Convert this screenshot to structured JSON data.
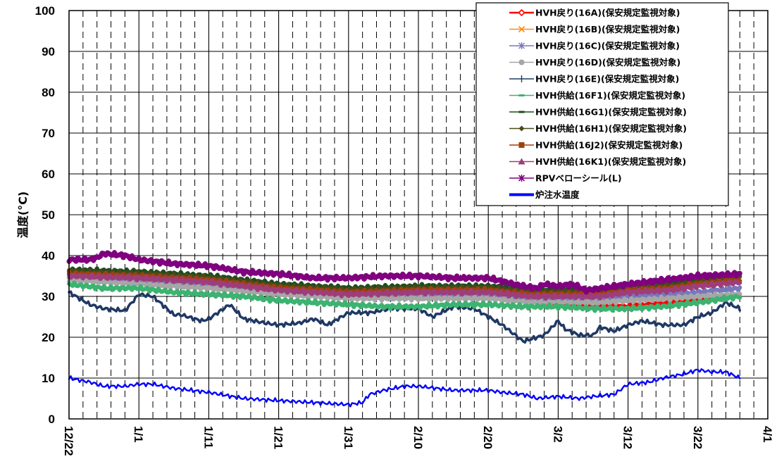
{
  "chart_data": {
    "type": "line",
    "title": "",
    "xlabel": "",
    "ylabel": "温度(°C)",
    "ylim": [
      0,
      100
    ],
    "yticks": [
      0,
      10,
      20,
      30,
      40,
      50,
      60,
      70,
      80,
      90,
      100
    ],
    "x_start": "12/22",
    "x_end": "4/1",
    "xtick_labels": [
      "12/22",
      "1/1",
      "1/11",
      "1/21",
      "1/31",
      "2/10",
      "2/20",
      "3/2",
      "3/12",
      "3/22",
      "4/1"
    ],
    "x_day_range": [
      0,
      100
    ],
    "grid": true,
    "legend_position": "top-right",
    "series": [
      {
        "name": "HVH戻り(16A)(保安規定監視対象)",
        "color": "#ff0000",
        "marker": "diamond-open",
        "x": [
          0,
          10,
          20,
          30,
          40,
          50,
          60,
          70,
          76,
          80,
          86,
          90,
          96
        ],
        "values": [
          35.5,
          34.5,
          33,
          31.5,
          30.5,
          30,
          30,
          28.5,
          27.5,
          27.5,
          28.5,
          29,
          30.5
        ]
      },
      {
        "name": "HVH戻り(16B)(保安規定監視対象)",
        "color": "#ff8c1a",
        "marker": "x",
        "x": [
          0,
          10,
          20,
          30,
          40,
          50,
          60,
          66,
          70,
          76,
          80,
          86,
          90,
          96
        ],
        "values": [
          36,
          35,
          34,
          32.5,
          31.5,
          31.5,
          31.5,
          30,
          30,
          30,
          31,
          32,
          33,
          34
        ]
      },
      {
        "name": "HVH戻り(16C)(保安規定監視対象)",
        "color": "#7777bb",
        "marker": "star",
        "x": [
          0,
          10,
          20,
          30,
          40,
          50,
          60,
          66,
          70,
          76,
          80,
          86,
          90,
          96
        ],
        "values": [
          34.5,
          33.5,
          32.5,
          31,
          30,
          30,
          30,
          29,
          29,
          29,
          30,
          30.5,
          31,
          32
        ]
      },
      {
        "name": "HVH戻り(16D)(保安規定監視対象)",
        "color": "#a6a6a6",
        "marker": "circle",
        "x": [
          0,
          10,
          20,
          30,
          40,
          50,
          60,
          66,
          70,
          76,
          80,
          86,
          90,
          96
        ],
        "values": [
          34,
          33,
          32,
          30.5,
          29.5,
          29.5,
          29.5,
          28.5,
          28.5,
          28.5,
          29,
          29.5,
          30,
          30.5
        ]
      },
      {
        "name": "HVH戻り(16E)(保安規定監視対象)",
        "color": "#1f3864",
        "marker": "plus",
        "x": [
          0,
          3,
          5,
          8,
          10,
          12,
          13,
          15,
          16,
          19,
          20,
          23,
          25,
          28,
          30,
          33,
          35,
          37,
          40,
          43,
          46,
          50,
          52,
          55,
          58,
          62,
          65,
          68,
          70,
          71,
          73,
          75,
          76,
          78,
          80,
          82,
          85,
          88,
          90,
          92,
          94,
          96
        ],
        "values": [
          31,
          28,
          27,
          26.5,
          30.5,
          30,
          28.5,
          25.5,
          25.5,
          24,
          24.5,
          28,
          24.5,
          23.5,
          23,
          23.5,
          24.5,
          23,
          26,
          26,
          27,
          27,
          25,
          27.5,
          27,
          23,
          19,
          20.5,
          24,
          22,
          20.5,
          20.5,
          22.5,
          21.5,
          23,
          24,
          23,
          23,
          25,
          26,
          28.5,
          27
        ]
      },
      {
        "name": "HVH供給(16F1)(保安規定監視対象)",
        "color": "#3cb371",
        "marker": "dash",
        "x": [
          0,
          5,
          10,
          15,
          20,
          25,
          30,
          35,
          40,
          45,
          50,
          55,
          60,
          65,
          70,
          75,
          80,
          85,
          90,
          96
        ],
        "values": [
          33,
          32,
          32,
          31,
          30.5,
          30,
          29,
          28.5,
          28,
          27.5,
          27.5,
          28,
          28,
          27.5,
          27.5,
          27,
          27,
          27.5,
          28.5,
          30
        ]
      },
      {
        "name": "HVH供給(16G1)(保安規定監視対象)",
        "color": "#1e4d1e",
        "marker": "dash",
        "x": [
          0,
          10,
          20,
          30,
          40,
          50,
          60,
          66,
          70,
          76,
          80,
          86,
          90,
          96
        ],
        "values": [
          36.5,
          36,
          35,
          33,
          32,
          32.5,
          32.5,
          31.5,
          31.5,
          31.5,
          32.5,
          33,
          34,
          35
        ]
      },
      {
        "name": "HVH供給(16H1)(保安規定監視対象)",
        "color": "#4a4a1a",
        "marker": "diamond",
        "x": [
          0,
          10,
          20,
          30,
          40,
          50,
          60,
          66,
          70,
          76,
          80,
          86,
          90,
          96
        ],
        "values": [
          36,
          35.5,
          34.5,
          32.5,
          31.5,
          32,
          32,
          31,
          31,
          31,
          32,
          32.5,
          33.5,
          34.5
        ]
      },
      {
        "name": "HVH供給(16J2)(保安規定監視対象)",
        "color": "#a0410d",
        "marker": "square",
        "x": [
          0,
          10,
          20,
          30,
          40,
          50,
          60,
          66,
          70,
          76,
          80,
          86,
          90,
          96
        ],
        "values": [
          35.5,
          35,
          34,
          32,
          31,
          31.5,
          31.5,
          30.5,
          30.5,
          30.5,
          31.5,
          32,
          33,
          34
        ]
      },
      {
        "name": "HVH供給(16K1)(保安規定監視対象)",
        "color": "#9e3d7a",
        "marker": "triangle",
        "x": [
          0,
          10,
          20,
          30,
          40,
          50,
          60,
          66,
          70,
          76,
          80,
          86,
          90,
          96
        ],
        "values": [
          35,
          34.5,
          33.5,
          31.5,
          30.5,
          31,
          31,
          30,
          30,
          30,
          31,
          31.5,
          32.5,
          33.5
        ]
      },
      {
        "name": "RPVベローシール(L)",
        "color": "#800080",
        "marker": "asterisk",
        "x": [
          0,
          3,
          4,
          5,
          8,
          10,
          15,
          20,
          25,
          30,
          35,
          40,
          45,
          50,
          55,
          60,
          65,
          67,
          68,
          70,
          72,
          74,
          76,
          80,
          85,
          90,
          96
        ],
        "values": [
          39,
          39,
          39.5,
          40.5,
          40,
          39,
          38,
          37.5,
          36,
          35.5,
          34.5,
          34.5,
          35,
          35,
          34.5,
          34.5,
          32.5,
          32,
          33,
          32.5,
          33,
          31.5,
          32,
          33,
          34,
          35,
          35.5
        ]
      },
      {
        "name": "炉注水温度",
        "color": "#0000ff",
        "marker": "none",
        "x": [
          0,
          3,
          5,
          8,
          10,
          12,
          15,
          20,
          25,
          30,
          35,
          40,
          42,
          43,
          45,
          48,
          50,
          55,
          60,
          62,
          65,
          67,
          70,
          73,
          75,
          78,
          80,
          83,
          85,
          88,
          90,
          92,
          94,
          96
        ],
        "values": [
          10,
          9,
          8,
          8,
          8.5,
          8.5,
          7.5,
          6.5,
          5,
          4.5,
          4,
          3.5,
          4,
          6,
          7,
          8,
          8,
          7,
          7,
          6.5,
          6,
          5,
          5.5,
          5,
          5.5,
          6,
          8.5,
          9,
          10,
          11,
          12,
          11.5,
          11.5,
          10
        ]
      }
    ]
  }
}
